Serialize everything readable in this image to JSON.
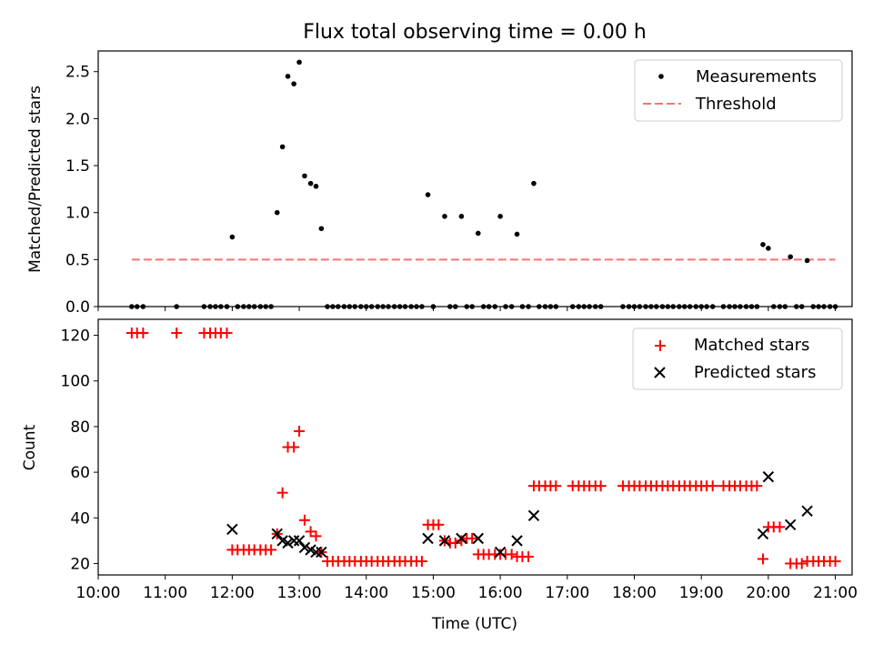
{
  "figure": {
    "title": "Flux total observing time = 0.00 h"
  },
  "chart_data": [
    {
      "type": "scatter",
      "ylabel": "Matched/Predicted stars",
      "xlim_hours": [
        10.0,
        21.25
      ],
      "ylim": [
        0,
        2.72
      ],
      "yticks": [
        0.0,
        0.5,
        1.0,
        1.5,
        2.0,
        2.5
      ],
      "ytick_labels": [
        "0.0",
        "0.5",
        "1.0",
        "1.5",
        "2.0",
        "2.5"
      ],
      "grid": false,
      "legend_position": "top-right",
      "legend": [
        {
          "label": "Measurements",
          "marker": "dot",
          "color": "#000000"
        },
        {
          "label": "Threshold",
          "marker": "dashed-line",
          "color": "#ff8080"
        }
      ],
      "threshold": {
        "value": 0.5,
        "x_start": 10.5,
        "x_end": 21.0,
        "color": "#ff7070"
      },
      "measurements": {
        "color": "#000000",
        "points": [
          [
            10.5,
            0
          ],
          [
            10.58,
            0
          ],
          [
            10.67,
            0
          ],
          [
            11.17,
            0
          ],
          [
            11.58,
            0
          ],
          [
            11.67,
            0
          ],
          [
            11.75,
            0
          ],
          [
            11.83,
            0
          ],
          [
            11.92,
            0
          ],
          [
            12.0,
            0.74
          ],
          [
            12.08,
            0
          ],
          [
            12.17,
            0
          ],
          [
            12.25,
            0
          ],
          [
            12.33,
            0
          ],
          [
            12.42,
            0
          ],
          [
            12.5,
            0
          ],
          [
            12.58,
            0
          ],
          [
            12.67,
            1.0
          ],
          [
            12.75,
            1.7
          ],
          [
            12.83,
            2.45
          ],
          [
            12.92,
            2.37
          ],
          [
            13.0,
            2.6
          ],
          [
            13.08,
            1.39
          ],
          [
            13.17,
            1.31
          ],
          [
            13.25,
            1.28
          ],
          [
            13.33,
            0.83
          ],
          [
            13.42,
            0
          ],
          [
            13.5,
            0
          ],
          [
            13.58,
            0
          ],
          [
            13.67,
            0
          ],
          [
            13.75,
            0
          ],
          [
            13.83,
            0
          ],
          [
            13.92,
            0
          ],
          [
            14.0,
            0
          ],
          [
            14.08,
            0
          ],
          [
            14.17,
            0
          ],
          [
            14.25,
            0
          ],
          [
            14.33,
            0
          ],
          [
            14.42,
            0
          ],
          [
            14.5,
            0
          ],
          [
            14.58,
            0
          ],
          [
            14.67,
            0
          ],
          [
            14.75,
            0
          ],
          [
            14.83,
            0
          ],
          [
            14.92,
            1.19
          ],
          [
            15.0,
            0
          ],
          [
            15.17,
            0.96
          ],
          [
            15.25,
            0
          ],
          [
            15.33,
            0
          ],
          [
            15.42,
            0.96
          ],
          [
            15.5,
            0
          ],
          [
            15.58,
            0
          ],
          [
            15.67,
            0.78
          ],
          [
            15.75,
            0
          ],
          [
            15.83,
            0
          ],
          [
            15.92,
            0
          ],
          [
            16.0,
            0.96
          ],
          [
            16.08,
            0
          ],
          [
            16.17,
            0
          ],
          [
            16.25,
            0.77
          ],
          [
            16.33,
            0
          ],
          [
            16.42,
            0
          ],
          [
            16.5,
            1.31
          ],
          [
            16.58,
            0
          ],
          [
            16.67,
            0
          ],
          [
            16.75,
            0
          ],
          [
            16.83,
            0
          ],
          [
            17.08,
            0
          ],
          [
            17.17,
            0
          ],
          [
            17.25,
            0
          ],
          [
            17.33,
            0
          ],
          [
            17.42,
            0
          ],
          [
            17.5,
            0
          ],
          [
            17.83,
            0
          ],
          [
            17.92,
            0
          ],
          [
            18.0,
            0
          ],
          [
            18.08,
            0
          ],
          [
            18.17,
            0
          ],
          [
            18.25,
            0
          ],
          [
            18.33,
            0
          ],
          [
            18.42,
            0
          ],
          [
            18.5,
            0
          ],
          [
            18.58,
            0
          ],
          [
            18.67,
            0
          ],
          [
            18.75,
            0
          ],
          [
            18.83,
            0
          ],
          [
            18.92,
            0
          ],
          [
            19.0,
            0
          ],
          [
            19.08,
            0
          ],
          [
            19.17,
            0
          ],
          [
            19.33,
            0
          ],
          [
            19.42,
            0
          ],
          [
            19.5,
            0
          ],
          [
            19.58,
            0
          ],
          [
            19.67,
            0
          ],
          [
            19.75,
            0
          ],
          [
            19.83,
            0
          ],
          [
            19.92,
            0.66
          ],
          [
            20.0,
            0.62
          ],
          [
            20.08,
            0
          ],
          [
            20.17,
            0
          ],
          [
            20.25,
            0
          ],
          [
            20.33,
            0.53
          ],
          [
            20.42,
            0
          ],
          [
            20.5,
            0
          ],
          [
            20.58,
            0.49
          ],
          [
            20.67,
            0
          ],
          [
            20.75,
            0
          ],
          [
            20.83,
            0
          ],
          [
            20.92,
            0
          ],
          [
            21.0,
            0
          ]
        ]
      }
    },
    {
      "type": "scatter",
      "xlabel": "Time (UTC)",
      "ylabel": "Count",
      "xlim_hours": [
        10.0,
        21.25
      ],
      "ylim": [
        15,
        127
      ],
      "xticks_hours": [
        10,
        11,
        12,
        13,
        14,
        15,
        16,
        17,
        18,
        19,
        20,
        21
      ],
      "xtick_labels": [
        "10:00",
        "11:00",
        "12:00",
        "13:00",
        "14:00",
        "15:00",
        "16:00",
        "17:00",
        "18:00",
        "19:00",
        "20:00",
        "21:00"
      ],
      "yticks": [
        20,
        40,
        60,
        80,
        100,
        120
      ],
      "ytick_labels": [
        "20",
        "40",
        "60",
        "80",
        "100",
        "120"
      ],
      "grid": false,
      "legend_position": "top-right",
      "legend": [
        {
          "label": "Matched stars",
          "marker": "plus",
          "color": "#ff0000"
        },
        {
          "label": "Predicted stars",
          "marker": "x",
          "color": "#000000"
        }
      ],
      "matched": {
        "color": "#ff0000",
        "points": [
          [
            10.5,
            121
          ],
          [
            10.58,
            121
          ],
          [
            10.67,
            121
          ],
          [
            11.17,
            121
          ],
          [
            11.58,
            121
          ],
          [
            11.67,
            121
          ],
          [
            11.75,
            121
          ],
          [
            11.83,
            121
          ],
          [
            11.92,
            121
          ],
          [
            12.0,
            26
          ],
          [
            12.08,
            26
          ],
          [
            12.17,
            26
          ],
          [
            12.25,
            26
          ],
          [
            12.33,
            26
          ],
          [
            12.42,
            26
          ],
          [
            12.5,
            26
          ],
          [
            12.58,
            26
          ],
          [
            12.67,
            33
          ],
          [
            12.75,
            51
          ],
          [
            12.83,
            71
          ],
          [
            12.92,
            71
          ],
          [
            13.0,
            78
          ],
          [
            13.08,
            39
          ],
          [
            13.17,
            34
          ],
          [
            13.25,
            32
          ],
          [
            13.33,
            25
          ],
          [
            13.42,
            21
          ],
          [
            13.5,
            21
          ],
          [
            13.58,
            21
          ],
          [
            13.67,
            21
          ],
          [
            13.75,
            21
          ],
          [
            13.83,
            21
          ],
          [
            13.92,
            21
          ],
          [
            14.0,
            21
          ],
          [
            14.08,
            21
          ],
          [
            14.17,
            21
          ],
          [
            14.25,
            21
          ],
          [
            14.33,
            21
          ],
          [
            14.42,
            21
          ],
          [
            14.5,
            21
          ],
          [
            14.58,
            21
          ],
          [
            14.67,
            21
          ],
          [
            14.75,
            21
          ],
          [
            14.83,
            21
          ],
          [
            14.92,
            37
          ],
          [
            15.0,
            37
          ],
          [
            15.08,
            37
          ],
          [
            15.17,
            30
          ],
          [
            15.25,
            29
          ],
          [
            15.33,
            29
          ],
          [
            15.42,
            30
          ],
          [
            15.5,
            31
          ],
          [
            15.58,
            31
          ],
          [
            15.67,
            24
          ],
          [
            15.75,
            24
          ],
          [
            15.83,
            24
          ],
          [
            15.92,
            24
          ],
          [
            16.0,
            24
          ],
          [
            16.08,
            24
          ],
          [
            16.17,
            24
          ],
          [
            16.25,
            23
          ],
          [
            16.33,
            23
          ],
          [
            16.42,
            23
          ],
          [
            16.5,
            54
          ],
          [
            16.58,
            54
          ],
          [
            16.67,
            54
          ],
          [
            16.75,
            54
          ],
          [
            16.83,
            54
          ],
          [
            17.08,
            54
          ],
          [
            17.17,
            54
          ],
          [
            17.25,
            54
          ],
          [
            17.33,
            54
          ],
          [
            17.42,
            54
          ],
          [
            17.5,
            54
          ],
          [
            17.83,
            54
          ],
          [
            17.92,
            54
          ],
          [
            18.0,
            54
          ],
          [
            18.08,
            54
          ],
          [
            18.17,
            54
          ],
          [
            18.25,
            54
          ],
          [
            18.33,
            54
          ],
          [
            18.42,
            54
          ],
          [
            18.5,
            54
          ],
          [
            18.58,
            54
          ],
          [
            18.67,
            54
          ],
          [
            18.75,
            54
          ],
          [
            18.83,
            54
          ],
          [
            18.92,
            54
          ],
          [
            19.0,
            54
          ],
          [
            19.08,
            54
          ],
          [
            19.17,
            54
          ],
          [
            19.33,
            54
          ],
          [
            19.42,
            54
          ],
          [
            19.5,
            54
          ],
          [
            19.58,
            54
          ],
          [
            19.67,
            54
          ],
          [
            19.75,
            54
          ],
          [
            19.83,
            54
          ],
          [
            19.92,
            22
          ],
          [
            20.0,
            36
          ],
          [
            20.08,
            36
          ],
          [
            20.17,
            36
          ],
          [
            20.33,
            20
          ],
          [
            20.42,
            20
          ],
          [
            20.5,
            20
          ],
          [
            20.58,
            21
          ],
          [
            20.67,
            21
          ],
          [
            20.75,
            21
          ],
          [
            20.83,
            21
          ],
          [
            20.92,
            21
          ],
          [
            21.0,
            21
          ]
        ]
      },
      "predicted": {
        "color": "#000000",
        "points": [
          [
            12.0,
            35
          ],
          [
            12.67,
            33
          ],
          [
            12.75,
            30
          ],
          [
            12.83,
            29
          ],
          [
            12.92,
            30
          ],
          [
            13.0,
            30
          ],
          [
            13.08,
            27
          ],
          [
            13.17,
            26
          ],
          [
            13.25,
            25
          ],
          [
            13.33,
            25
          ],
          [
            14.92,
            31
          ],
          [
            15.17,
            30
          ],
          [
            15.42,
            31
          ],
          [
            15.67,
            31
          ],
          [
            16.0,
            25
          ],
          [
            16.25,
            30
          ],
          [
            16.5,
            41
          ],
          [
            19.92,
            33
          ],
          [
            20.0,
            58
          ],
          [
            20.33,
            37
          ],
          [
            20.58,
            43
          ]
        ]
      }
    }
  ]
}
